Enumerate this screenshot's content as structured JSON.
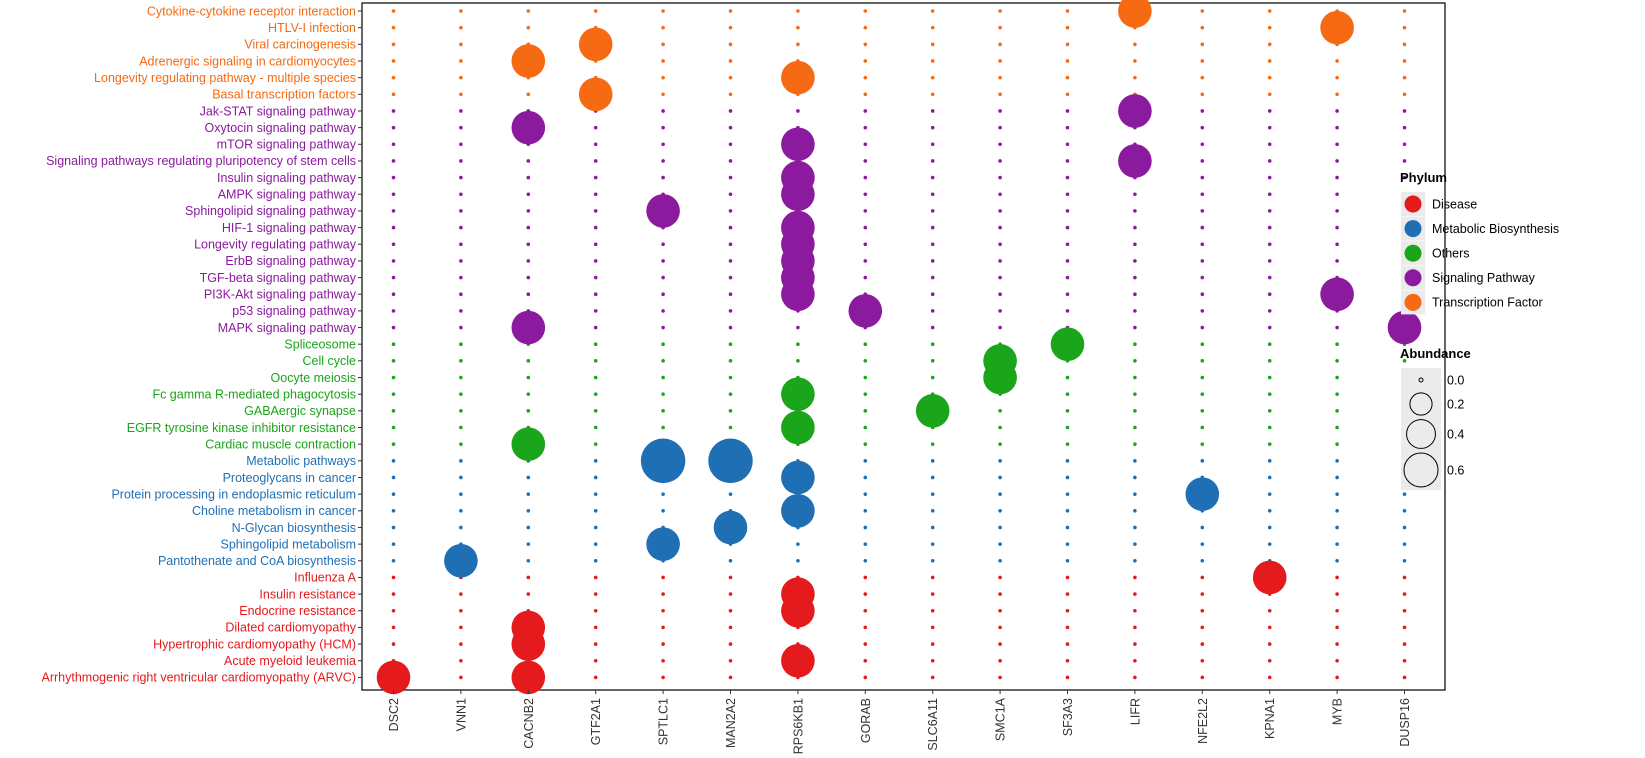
{
  "chart_data": {
    "type": "scatter",
    "categories_x": [
      "DSC2",
      "VNN1",
      "CACNB2",
      "GTF2A1",
      "SPTLC1",
      "MAN2A2",
      "RPS6KB1",
      "GORAB",
      "SLC6A11",
      "SMC1A",
      "SF3A3",
      "LIFR",
      "NFE2L2",
      "KPNA1",
      "MYB",
      "DUSP16"
    ],
    "pathways": [
      {
        "name": "Cytokine-cytokine receptor interaction",
        "phylum": "Transcription Factor"
      },
      {
        "name": "HTLV-I infection",
        "phylum": "Transcription Factor"
      },
      {
        "name": "Viral carcinogenesis",
        "phylum": "Transcription Factor"
      },
      {
        "name": "Adrenergic signaling in cardiomyocytes",
        "phylum": "Transcription Factor"
      },
      {
        "name": "Longevity regulating pathway - multiple species",
        "phylum": "Transcription Factor"
      },
      {
        "name": "Basal transcription factors",
        "phylum": "Transcription Factor"
      },
      {
        "name": "Jak-STAT signaling pathway",
        "phylum": "Signaling Pathway"
      },
      {
        "name": "Oxytocin signaling pathway",
        "phylum": "Signaling Pathway"
      },
      {
        "name": "mTOR signaling pathway",
        "phylum": "Signaling Pathway"
      },
      {
        "name": "Signaling pathways regulating pluripotency of stem cells",
        "phylum": "Signaling Pathway"
      },
      {
        "name": "Insulin signaling pathway",
        "phylum": "Signaling Pathway"
      },
      {
        "name": "AMPK signaling pathway",
        "phylum": "Signaling Pathway"
      },
      {
        "name": "Sphingolipid signaling pathway",
        "phylum": "Signaling Pathway"
      },
      {
        "name": "HIF-1 signaling pathway",
        "phylum": "Signaling Pathway"
      },
      {
        "name": "Longevity regulating pathway",
        "phylum": "Signaling Pathway"
      },
      {
        "name": "ErbB signaling pathway",
        "phylum": "Signaling Pathway"
      },
      {
        "name": "TGF-beta signaling pathway",
        "phylum": "Signaling Pathway"
      },
      {
        "name": "PI3K-Akt signaling pathway",
        "phylum": "Signaling Pathway"
      },
      {
        "name": "p53 signaling pathway",
        "phylum": "Signaling Pathway"
      },
      {
        "name": "MAPK signaling pathway",
        "phylum": "Signaling Pathway"
      },
      {
        "name": "Spliceosome",
        "phylum": "Others"
      },
      {
        "name": "Cell cycle",
        "phylum": "Others"
      },
      {
        "name": "Oocyte meiosis",
        "phylum": "Others"
      },
      {
        "name": "Fc gamma R-mediated phagocytosis",
        "phylum": "Others"
      },
      {
        "name": "GABAergic synapse",
        "phylum": "Others"
      },
      {
        "name": "EGFR tyrosine kinase inhibitor resistance",
        "phylum": "Others"
      },
      {
        "name": "Cardiac muscle contraction",
        "phylum": "Others"
      },
      {
        "name": "Metabolic pathways",
        "phylum": "Metabolic Biosynthesis"
      },
      {
        "name": "Proteoglycans in cancer",
        "phylum": "Metabolic Biosynthesis"
      },
      {
        "name": "Protein processing in endoplasmic reticulum",
        "phylum": "Metabolic Biosynthesis"
      },
      {
        "name": "Choline metabolism in cancer",
        "phylum": "Metabolic Biosynthesis"
      },
      {
        "name": "N-Glycan biosynthesis",
        "phylum": "Metabolic Biosynthesis"
      },
      {
        "name": "Sphingolipid metabolism",
        "phylum": "Metabolic Biosynthesis"
      },
      {
        "name": "Pantothenate and CoA biosynthesis",
        "phylum": "Metabolic Biosynthesis"
      },
      {
        "name": "Influenza A",
        "phylum": "Disease"
      },
      {
        "name": "Insulin resistance",
        "phylum": "Disease"
      },
      {
        "name": "Endocrine resistance",
        "phylum": "Disease"
      },
      {
        "name": "Dilated cardiomyopathy",
        "phylum": "Disease"
      },
      {
        "name": "Hypertrophic cardiomyopathy (HCM)",
        "phylum": "Disease"
      },
      {
        "name": "Acute myeloid leukemia",
        "phylum": "Disease"
      },
      {
        "name": "Arrhythmogenic right ventricular cardiomyopathy (ARVC)",
        "phylum": "Disease"
      }
    ],
    "points": [
      {
        "gene": "LIFR",
        "pathway": "Cytokine-cytokine receptor interaction",
        "abundance": 0.3
      },
      {
        "gene": "MYB",
        "pathway": "HTLV-I infection",
        "abundance": 0.3
      },
      {
        "gene": "GTF2A1",
        "pathway": "Viral carcinogenesis",
        "abundance": 0.3
      },
      {
        "gene": "CACNB2",
        "pathway": "Adrenergic signaling in cardiomyocytes",
        "abundance": 0.3
      },
      {
        "gene": "RPS6KB1",
        "pathway": "Longevity regulating pathway - multiple species",
        "abundance": 0.3
      },
      {
        "gene": "GTF2A1",
        "pathway": "Basal transcription factors",
        "abundance": 0.3
      },
      {
        "gene": "LIFR",
        "pathway": "Jak-STAT signaling pathway",
        "abundance": 0.3
      },
      {
        "gene": "CACNB2",
        "pathway": "Oxytocin signaling pathway",
        "abundance": 0.3
      },
      {
        "gene": "RPS6KB1",
        "pathway": "mTOR signaling pathway",
        "abundance": 0.3
      },
      {
        "gene": "LIFR",
        "pathway": "Signaling pathways regulating pluripotency of stem cells",
        "abundance": 0.3
      },
      {
        "gene": "RPS6KB1",
        "pathway": "Insulin signaling pathway",
        "abundance": 0.3
      },
      {
        "gene": "RPS6KB1",
        "pathway": "AMPK signaling pathway",
        "abundance": 0.3
      },
      {
        "gene": "SPTLC1",
        "pathway": "Sphingolipid signaling pathway",
        "abundance": 0.3
      },
      {
        "gene": "RPS6KB1",
        "pathway": "HIF-1 signaling pathway",
        "abundance": 0.3
      },
      {
        "gene": "RPS6KB1",
        "pathway": "Longevity regulating pathway",
        "abundance": 0.3
      },
      {
        "gene": "RPS6KB1",
        "pathway": "ErbB signaling pathway",
        "abundance": 0.3
      },
      {
        "gene": "RPS6KB1",
        "pathway": "TGF-beta signaling pathway",
        "abundance": 0.3
      },
      {
        "gene": "RPS6KB1",
        "pathway": "PI3K-Akt signaling pathway",
        "abundance": 0.3
      },
      {
        "gene": "MYB",
        "pathway": "PI3K-Akt signaling pathway",
        "abundance": 0.3
      },
      {
        "gene": "GORAB",
        "pathway": "p53 signaling pathway",
        "abundance": 0.3
      },
      {
        "gene": "CACNB2",
        "pathway": "MAPK signaling pathway",
        "abundance": 0.3
      },
      {
        "gene": "DUSP16",
        "pathway": "MAPK signaling pathway",
        "abundance": 0.3
      },
      {
        "gene": "SF3A3",
        "pathway": "Spliceosome",
        "abundance": 0.3
      },
      {
        "gene": "SMC1A",
        "pathway": "Cell cycle",
        "abundance": 0.3
      },
      {
        "gene": "SMC1A",
        "pathway": "Oocyte meiosis",
        "abundance": 0.3
      },
      {
        "gene": "RPS6KB1",
        "pathway": "Fc gamma R-mediated phagocytosis",
        "abundance": 0.3
      },
      {
        "gene": "SLC6A11",
        "pathway": "GABAergic synapse",
        "abundance": 0.3
      },
      {
        "gene": "RPS6KB1",
        "pathway": "EGFR tyrosine kinase inhibitor resistance",
        "abundance": 0.3
      },
      {
        "gene": "CACNB2",
        "pathway": "Cardiac muscle contraction",
        "abundance": 0.3
      },
      {
        "gene": "SPTLC1",
        "pathway": "Metabolic pathways",
        "abundance": 0.6
      },
      {
        "gene": "MAN2A2",
        "pathway": "Metabolic pathways",
        "abundance": 0.6
      },
      {
        "gene": "RPS6KB1",
        "pathway": "Proteoglycans in cancer",
        "abundance": 0.3
      },
      {
        "gene": "NFE2L2",
        "pathway": "Protein processing in endoplasmic reticulum",
        "abundance": 0.3
      },
      {
        "gene": "RPS6KB1",
        "pathway": "Choline metabolism in cancer",
        "abundance": 0.3
      },
      {
        "gene": "MAN2A2",
        "pathway": "N-Glycan biosynthesis",
        "abundance": 0.3
      },
      {
        "gene": "SPTLC1",
        "pathway": "Sphingolipid metabolism",
        "abundance": 0.3
      },
      {
        "gene": "VNN1",
        "pathway": "Pantothenate and CoA biosynthesis",
        "abundance": 0.3
      },
      {
        "gene": "KPNA1",
        "pathway": "Influenza A",
        "abundance": 0.3
      },
      {
        "gene": "RPS6KB1",
        "pathway": "Insulin resistance",
        "abundance": 0.3
      },
      {
        "gene": "RPS6KB1",
        "pathway": "Endocrine resistance",
        "abundance": 0.3
      },
      {
        "gene": "CACNB2",
        "pathway": "Dilated cardiomyopathy",
        "abundance": 0.3
      },
      {
        "gene": "CACNB2",
        "pathway": "Hypertrophic cardiomyopathy (HCM)",
        "abundance": 0.3
      },
      {
        "gene": "RPS6KB1",
        "pathway": "Acute myeloid leukemia",
        "abundance": 0.3
      },
      {
        "gene": "DSC2",
        "pathway": "Arrhythmogenic right ventricular cardiomyopathy (ARVC)",
        "abundance": 0.3
      },
      {
        "gene": "CACNB2",
        "pathway": "Arrhythmogenic right ventricular cardiomyopathy (ARVC)",
        "abundance": 0.3
      }
    ],
    "legend": {
      "color_title": "Phylum",
      "color_items": [
        {
          "label": "Disease",
          "color": "#E41A1C"
        },
        {
          "label": "Metabolic Biosynthesis",
          "color": "#1F6FB4"
        },
        {
          "label": "Others",
          "color": "#1AA51A"
        },
        {
          "label": "Signaling Pathway",
          "color": "#8B1A9E"
        },
        {
          "label": "Transcription Factor",
          "color": "#F56A12"
        }
      ],
      "size_title": "Abundance",
      "size_items": [
        {
          "label": "0.0",
          "value": 0.0
        },
        {
          "label": "0.2",
          "value": 0.2
        },
        {
          "label": "0.4",
          "value": 0.4
        },
        {
          "label": "0.6",
          "value": 0.6
        }
      ],
      "placement": "right"
    }
  }
}
